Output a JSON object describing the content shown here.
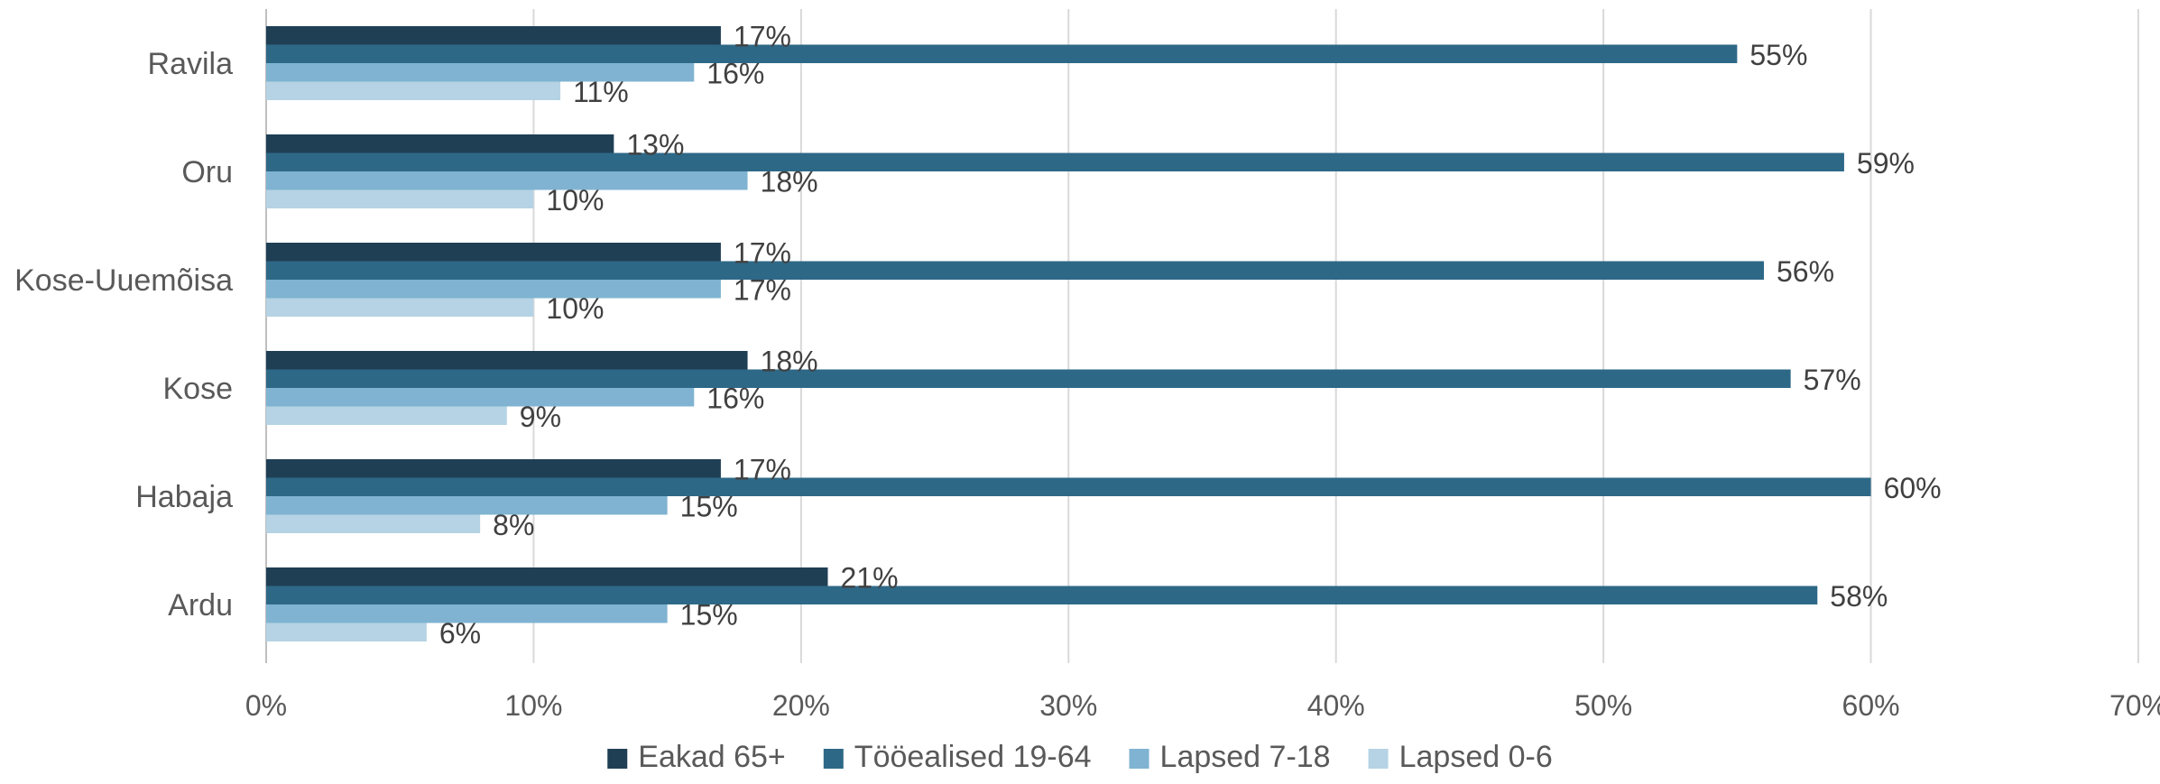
{
  "chart_data": {
    "type": "bar",
    "orientation": "horizontal",
    "categories": [
      "Ravila",
      "Oru",
      "Kose-Uuemõisa",
      "Kose",
      "Habaja",
      "Ardu"
    ],
    "series": [
      {
        "name": "Eakad 65+",
        "color": "#1f3f55",
        "values": [
          17,
          13,
          17,
          18,
          17,
          21
        ]
      },
      {
        "name": "Tööealised 19-64",
        "color": "#2e6887",
        "values": [
          55,
          59,
          56,
          57,
          60,
          58
        ]
      },
      {
        "name": "Lapsed 7-18",
        "color": "#7fb3d1",
        "values": [
          16,
          18,
          17,
          16,
          15,
          15
        ]
      },
      {
        "name": "Lapsed 0-6",
        "color": "#b5d3e4",
        "values": [
          11,
          10,
          10,
          9,
          8,
          6
        ]
      }
    ],
    "value_suffix": "%",
    "xlim": [
      0,
      70
    ],
    "xticks": [
      "0%",
      "10%",
      "20%",
      "30%",
      "40%",
      "50%",
      "60%",
      "70%"
    ],
    "grid": true,
    "legend_position": "bottom"
  }
}
